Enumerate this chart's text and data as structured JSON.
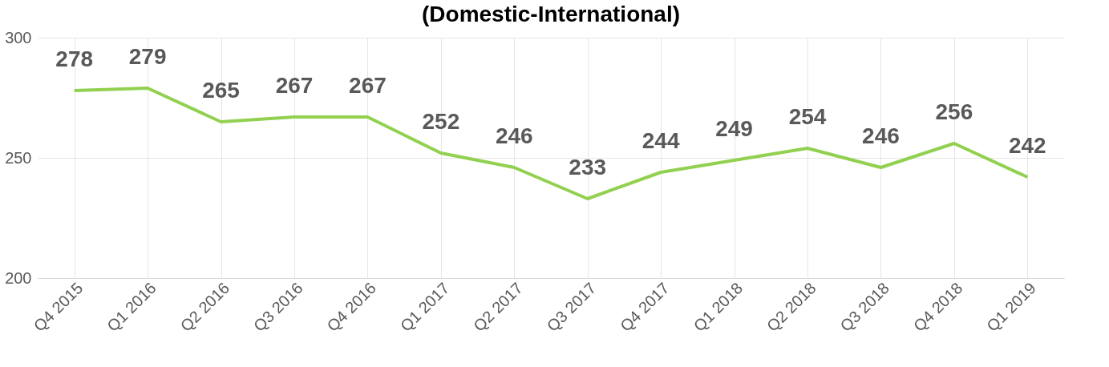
{
  "chart_data": {
    "type": "line",
    "title": "(Domestic-International)",
    "categories": [
      "Q4 2015",
      "Q1 2016",
      "Q2 2016",
      "Q3 2016",
      "Q4 2016",
      "Q1 2017",
      "Q2 2017",
      "Q3 2017",
      "Q4 2017",
      "Q1 2018",
      "Q2 2018",
      "Q3 2018",
      "Q4 2018",
      "Q1 2019"
    ],
    "series": [
      {
        "color": "#92d050",
        "values": [
          278,
          279,
          265,
          267,
          267,
          252,
          246,
          233,
          244,
          249,
          254,
          246,
          256,
          242
        ]
      }
    ],
    "ylim": [
      200,
      300
    ],
    "yticks": [
      200,
      250,
      300
    ],
    "grid": true,
    "data_labels": true,
    "marker": "none",
    "line_style": "solid"
  }
}
